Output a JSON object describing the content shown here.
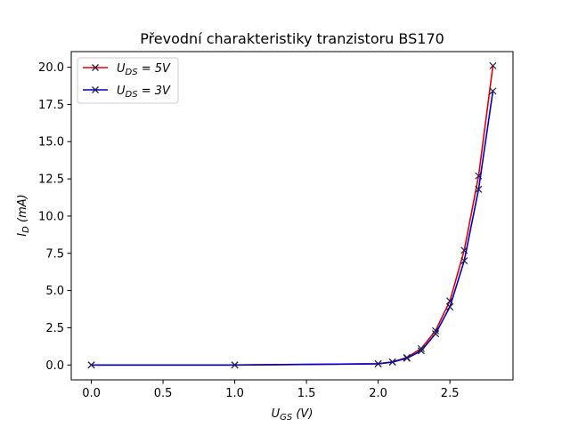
{
  "chart_data": {
    "type": "line",
    "title": "Převodní charakteristiky tranzistoru BS170",
    "xlabel": {
      "main": "U",
      "sub": "GS",
      "unit": " (V)"
    },
    "ylabel": {
      "main": "I",
      "sub": "D",
      "unit": " (mA)"
    },
    "xlim": [
      -0.14,
      2.94
    ],
    "ylim": [
      -1.0,
      21.05
    ],
    "x_ticks": [
      0.0,
      0.5,
      1.0,
      1.5,
      2.0,
      2.5
    ],
    "x_tick_labels": [
      "0.0",
      "0.5",
      "1.0",
      "1.5",
      "2.0",
      "2.5"
    ],
    "y_ticks": [
      0.0,
      2.5,
      5.0,
      7.5,
      10.0,
      12.5,
      15.0,
      17.5,
      20.0
    ],
    "y_tick_labels": [
      "0.0",
      "2.5",
      "5.0",
      "7.5",
      "10.0",
      "12.5",
      "15.0",
      "17.5",
      "20.0"
    ],
    "grid": false,
    "legend_position": "top-left",
    "series": [
      {
        "name": {
          "main": "U",
          "sub": "DS",
          "rest": " = 5V"
        },
        "color": "#e00000",
        "marker": "x",
        "x": [
          0.0,
          1.0,
          2.0,
          2.1,
          2.2,
          2.3,
          2.4,
          2.5,
          2.6,
          2.7,
          2.8
        ],
        "y": [
          0.0,
          0.0,
          0.08,
          0.2,
          0.5,
          1.1,
          2.3,
          4.3,
          7.7,
          12.7,
          20.1
        ]
      },
      {
        "name": {
          "main": "U",
          "sub": "DS",
          "rest": " = 3V"
        },
        "color": "#0000cc",
        "marker": "x",
        "x": [
          0.0,
          1.0,
          2.0,
          2.1,
          2.2,
          2.3,
          2.4,
          2.5,
          2.6,
          2.7,
          2.8
        ],
        "y": [
          0.0,
          0.0,
          0.08,
          0.2,
          0.45,
          0.95,
          2.1,
          3.9,
          7.0,
          11.8,
          18.4
        ]
      }
    ]
  }
}
